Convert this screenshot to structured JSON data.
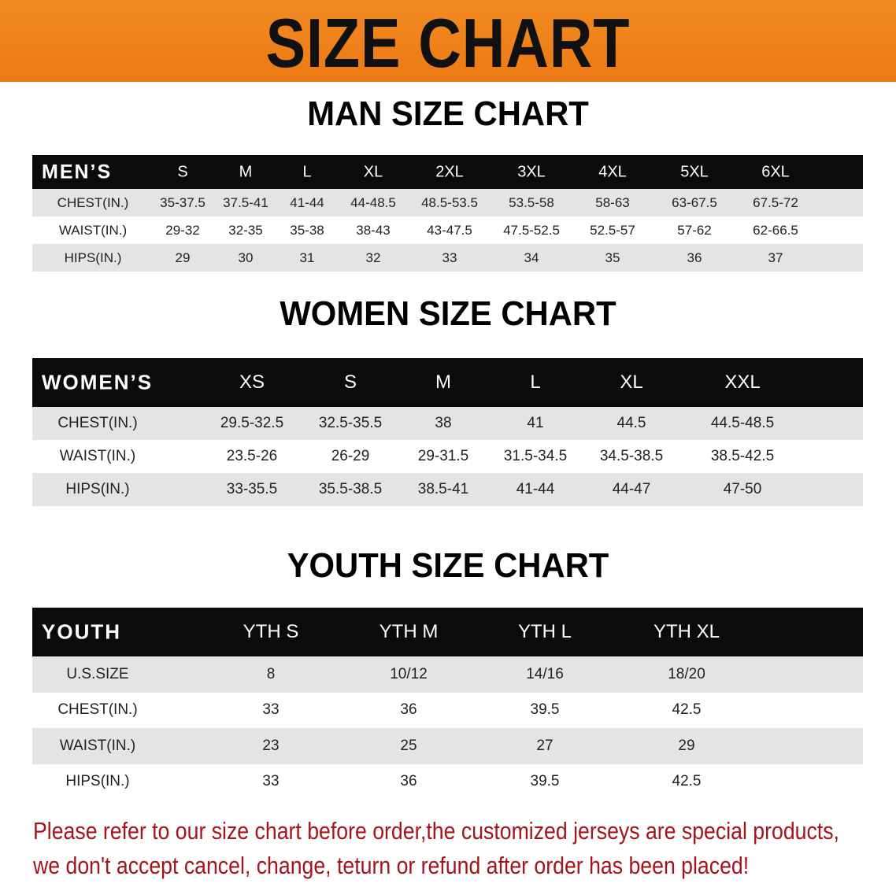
{
  "banner_title": "SIZE CHART",
  "men": {
    "title": "MAN SIZE CHART",
    "corner": "MEN’S",
    "sizes": [
      "S",
      "M",
      "L",
      "XL",
      "2XL",
      "3XL",
      "4XL",
      "5XL",
      "6XL"
    ],
    "rows": [
      {
        "label": "CHEST(IN.)",
        "values": [
          "35-37.5",
          "37.5-41",
          "41-44",
          "44-48.5",
          "48.5-53.5",
          "53.5-58",
          "58-63",
          "63-67.5",
          "67.5-72"
        ]
      },
      {
        "label": "WAIST(IN.)",
        "values": [
          "29-32",
          "32-35",
          "35-38",
          "38-43",
          "43-47.5",
          "47.5-52.5",
          "52.5-57",
          "57-62",
          "62-66.5"
        ]
      },
      {
        "label": "HIPS(IN.)",
        "values": [
          "29",
          "30",
          "31",
          "32",
          "33",
          "34",
          "35",
          "36",
          "37"
        ]
      }
    ]
  },
  "women": {
    "title": "WOMEN SIZE CHART",
    "corner": "WOMEN’S",
    "sizes": [
      "XS",
      "S",
      "M",
      "L",
      "XL",
      "XXL"
    ],
    "rows": [
      {
        "label": "CHEST(IN.)",
        "values": [
          "29.5-32.5",
          "32.5-35.5",
          "38",
          "41",
          "44.5",
          "44.5-48.5"
        ]
      },
      {
        "label": "WAIST(IN.)",
        "values": [
          "23.5-26",
          "26-29",
          "29-31.5",
          "31.5-34.5",
          "34.5-38.5",
          "38.5-42.5"
        ]
      },
      {
        "label": "HIPS(IN.)",
        "values": [
          "33-35.5",
          "35.5-38.5",
          "38.5-41",
          "41-44",
          "44-47",
          "47-50"
        ]
      }
    ]
  },
  "youth": {
    "title": "YOUTH SIZE CHART",
    "corner": "YOUTH",
    "sizes": [
      "YTH S",
      "YTH M",
      "YTH L",
      "YTH XL"
    ],
    "rows": [
      {
        "label": "U.S.SIZE",
        "values": [
          "8",
          "10/12",
          "14/16",
          "18/20"
        ]
      },
      {
        "label": "CHEST(IN.)",
        "values": [
          "33",
          "36",
          "39.5",
          "42.5"
        ]
      },
      {
        "label": "WAIST(IN.)",
        "values": [
          "23",
          "25",
          "27",
          "29"
        ]
      },
      {
        "label": "HIPS(IN.)",
        "values": [
          "33",
          "36",
          "39.5",
          "42.5"
        ]
      }
    ]
  },
  "notice": {
    "line1": "Please refer to our size chart before order,the customized jerseys are special products,",
    "line2": "we don't accept cancel, change, teturn or refund after order has been placed!"
  },
  "colors": {
    "banner": "#ef8019",
    "header_row": "#0b0b0b",
    "stripe": "#e4e4e6",
    "notice": "#a4141a"
  }
}
